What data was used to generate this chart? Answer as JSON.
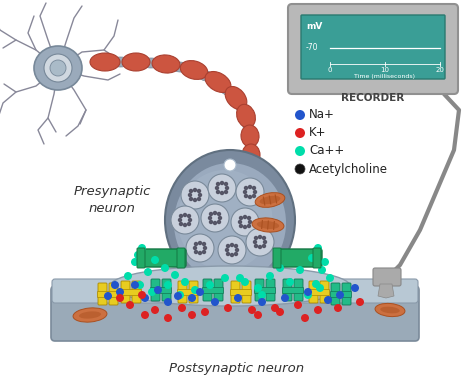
{
  "bg_color": "#ffffff",
  "presynaptic_label": "Presynaptic\nneuron",
  "postsynaptic_label": "Postsynaptic neuron",
  "recorder_label": "RECORDER",
  "mv_label": "mV",
  "mv_value": "-70",
  "time_label": "Time (milliseconds)",
  "time_ticks": [
    "0",
    "10",
    "20"
  ],
  "legend": [
    {
      "color": "#2255cc",
      "label": "Na+"
    },
    {
      "color": "#dd2222",
      "label": "K+"
    },
    {
      "color": "#00ddaa",
      "label": "Ca++"
    },
    {
      "color": "#111111",
      "label": "Acetylcholine"
    }
  ],
  "monitor_bg": "#3a9e96",
  "monitor_border": "#b8b8b8",
  "synapse_outer": "#7a8a9e",
  "synapse_inner": "#9aaabe",
  "synapse_lighter": "#aabbcc",
  "vesicle_outer": "#c8d0dc",
  "vesicle_inner": "#555566",
  "mito_color": "#cc7040",
  "mito_stripe": "#aa5020",
  "channel_color": "#22aa66",
  "channel_dark": "#157744",
  "post_membrane": "#9aaab8",
  "post_membrane_light": "#b8c8d4",
  "post_receptor_yellow": "#e8cc20",
  "post_receptor_teal": "#22bb88",
  "axon_red": "#cc5540",
  "axon_seg": "#aa4030",
  "axon_connector": "#9aaab8",
  "neuron_body": "#9aaabb",
  "neuron_edge": "#778899",
  "neuron_nucleus_outer": "#d0d8e0",
  "neuron_nucleus_inner": "#aabbc8",
  "dendrite_color": "#888899",
  "cable_color": "#888888",
  "probe_color": "#aaaaaa"
}
